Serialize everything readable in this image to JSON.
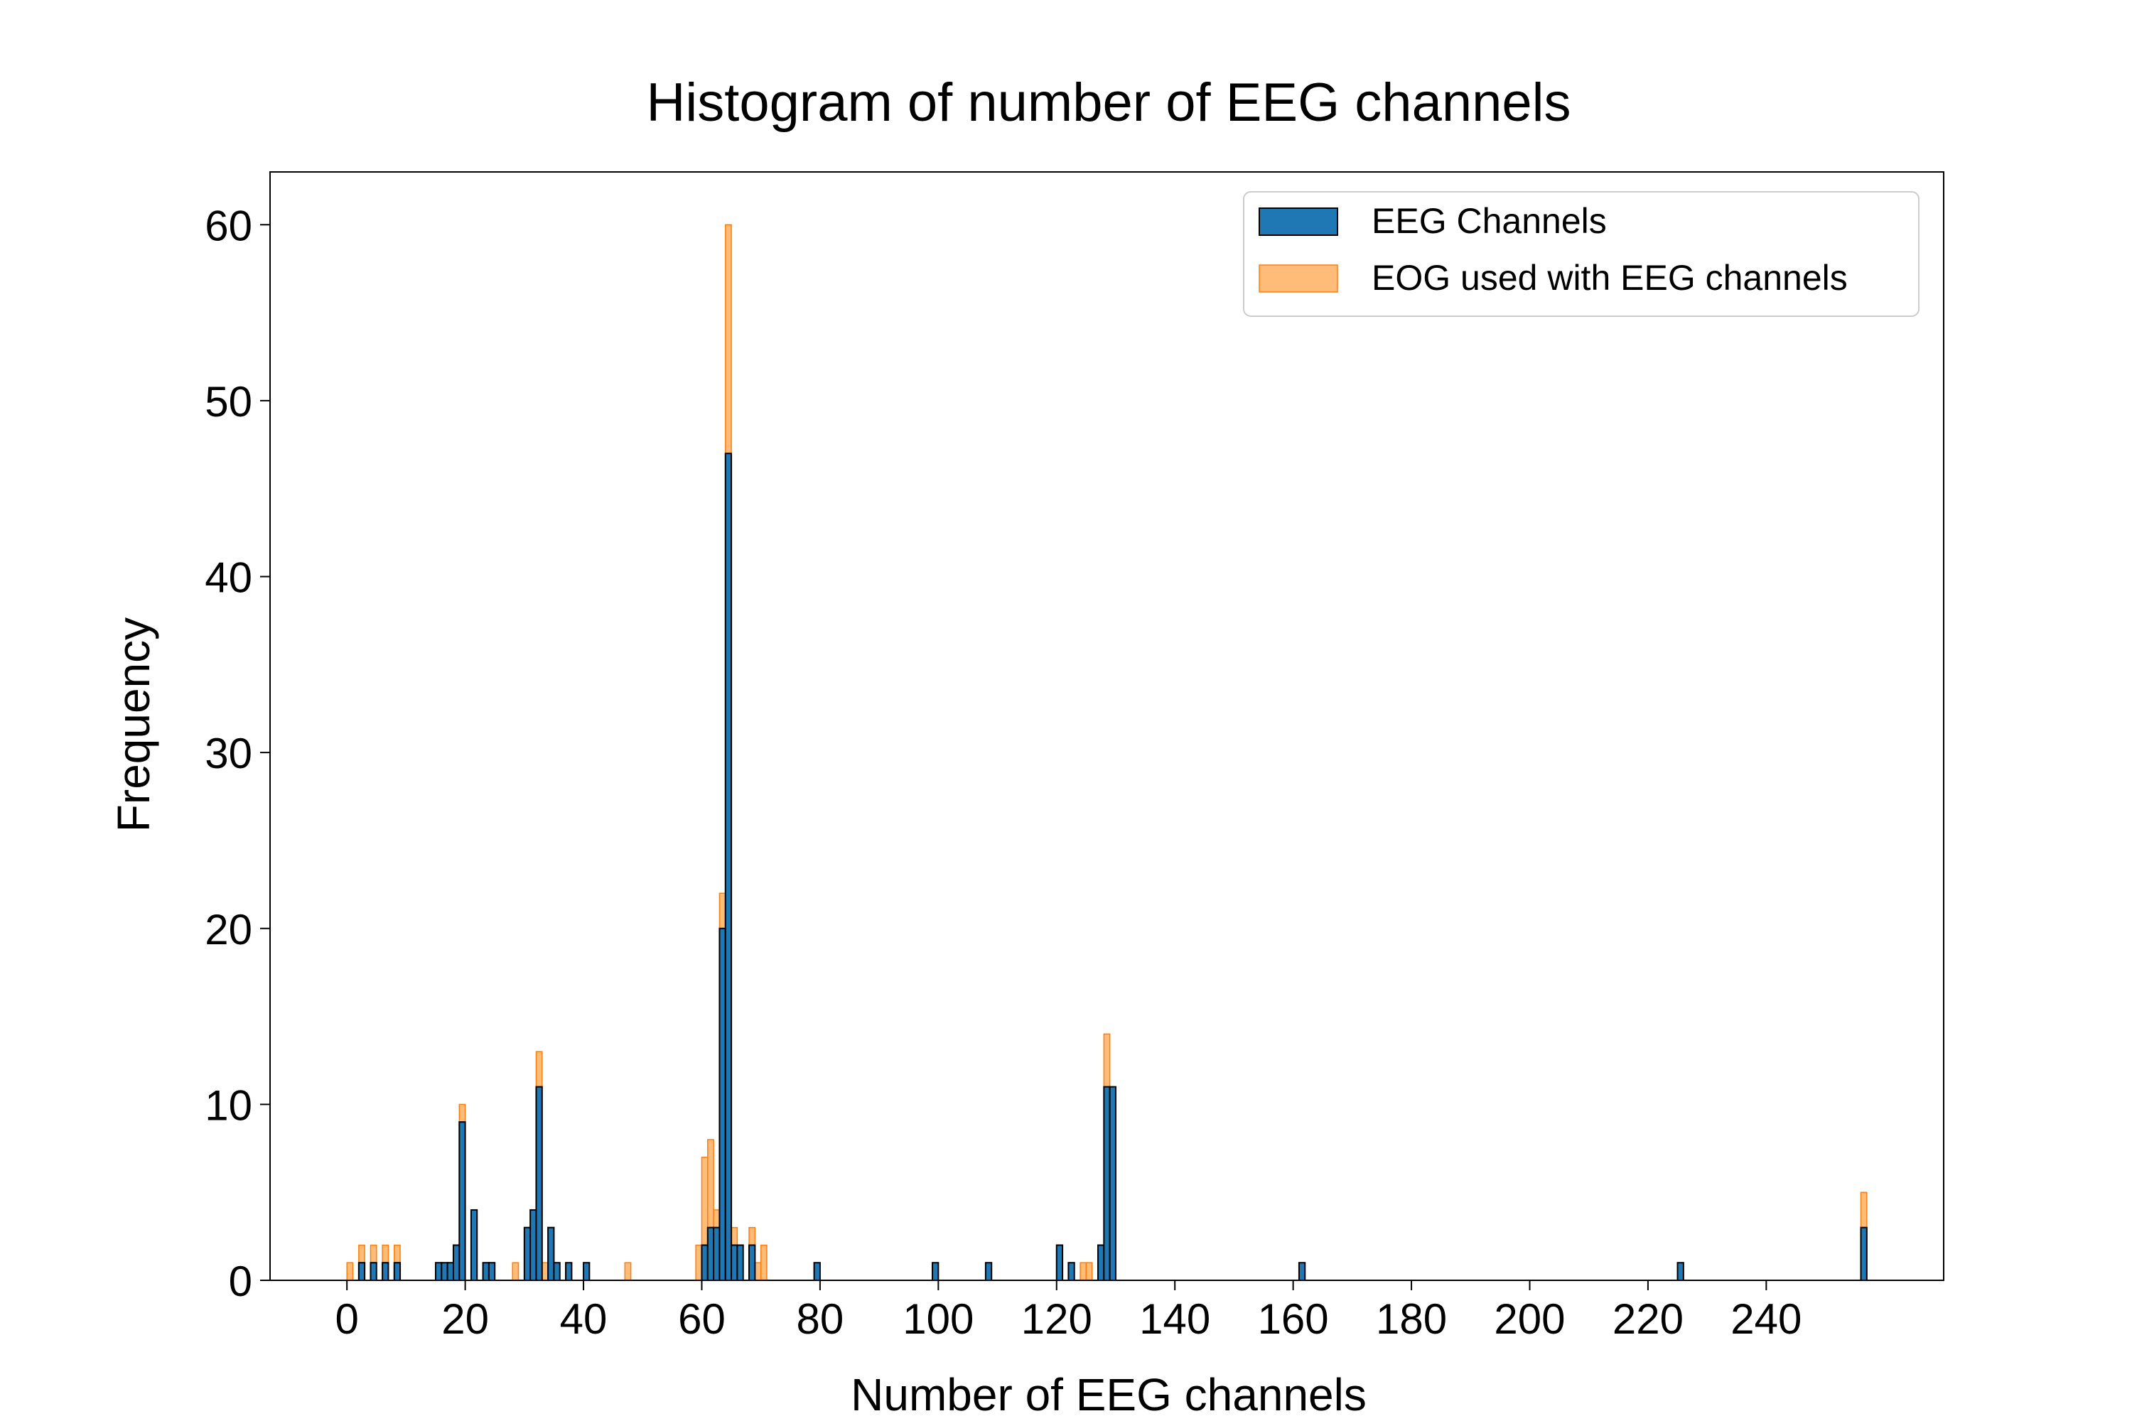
{
  "chart_data": {
    "type": "bar",
    "title": "Histogram of number of EEG channels",
    "xlabel": "Number of EEG channels",
    "ylabel": "Frequency",
    "xlim": [
      -13,
      270
    ],
    "ylim": [
      0,
      63
    ],
    "xticks": [
      0,
      20,
      40,
      60,
      80,
      100,
      120,
      140,
      160,
      180,
      200,
      220,
      240
    ],
    "yticks": [
      0,
      10,
      20,
      30,
      40,
      50,
      60
    ],
    "bin_width": 1,
    "grid": false,
    "legend_position": "top-right",
    "series": [
      {
        "name": "EEG Channels",
        "color": "#1f77b4",
        "edgecolor": "#000000",
        "points": [
          {
            "x": 2,
            "y": 1
          },
          {
            "x": 4,
            "y": 1
          },
          {
            "x": 6,
            "y": 1
          },
          {
            "x": 8,
            "y": 1
          },
          {
            "x": 15,
            "y": 1
          },
          {
            "x": 16,
            "y": 1
          },
          {
            "x": 17,
            "y": 1
          },
          {
            "x": 18,
            "y": 2
          },
          {
            "x": 19,
            "y": 9
          },
          {
            "x": 21,
            "y": 4
          },
          {
            "x": 23,
            "y": 1
          },
          {
            "x": 24,
            "y": 1
          },
          {
            "x": 30,
            "y": 3
          },
          {
            "x": 31,
            "y": 4
          },
          {
            "x": 32,
            "y": 11
          },
          {
            "x": 34,
            "y": 3
          },
          {
            "x": 35,
            "y": 1
          },
          {
            "x": 37,
            "y": 1
          },
          {
            "x": 40,
            "y": 1
          },
          {
            "x": 60,
            "y": 2
          },
          {
            "x": 61,
            "y": 3
          },
          {
            "x": 62,
            "y": 3
          },
          {
            "x": 63,
            "y": 20
          },
          {
            "x": 64,
            "y": 47
          },
          {
            "x": 65,
            "y": 2
          },
          {
            "x": 66,
            "y": 2
          },
          {
            "x": 68,
            "y": 2
          },
          {
            "x": 79,
            "y": 1
          },
          {
            "x": 99,
            "y": 1
          },
          {
            "x": 108,
            "y": 1
          },
          {
            "x": 120,
            "y": 2
          },
          {
            "x": 122,
            "y": 1
          },
          {
            "x": 127,
            "y": 2
          },
          {
            "x": 128,
            "y": 11
          },
          {
            "x": 129,
            "y": 11
          },
          {
            "x": 161,
            "y": 1
          },
          {
            "x": 225,
            "y": 1
          },
          {
            "x": 256,
            "y": 3
          }
        ]
      },
      {
        "name": "EOG used with EEG channels",
        "color": "#ffbb78",
        "edgecolor": "#ff7f0e",
        "points": [
          {
            "x": 0,
            "y": 1
          },
          {
            "x": 2,
            "y": 2
          },
          {
            "x": 4,
            "y": 2
          },
          {
            "x": 6,
            "y": 2
          },
          {
            "x": 8,
            "y": 2
          },
          {
            "x": 19,
            "y": 10
          },
          {
            "x": 28,
            "y": 1
          },
          {
            "x": 32,
            "y": 13
          },
          {
            "x": 33,
            "y": 1
          },
          {
            "x": 47,
            "y": 1
          },
          {
            "x": 59,
            "y": 2
          },
          {
            "x": 60,
            "y": 7
          },
          {
            "x": 61,
            "y": 8
          },
          {
            "x": 62,
            "y": 4
          },
          {
            "x": 63,
            "y": 22
          },
          {
            "x": 64,
            "y": 60
          },
          {
            "x": 65,
            "y": 3
          },
          {
            "x": 68,
            "y": 3
          },
          {
            "x": 69,
            "y": 1
          },
          {
            "x": 70,
            "y": 2
          },
          {
            "x": 124,
            "y": 1
          },
          {
            "x": 125,
            "y": 1
          },
          {
            "x": 128,
            "y": 14
          },
          {
            "x": 256,
            "y": 5
          }
        ]
      }
    ]
  }
}
